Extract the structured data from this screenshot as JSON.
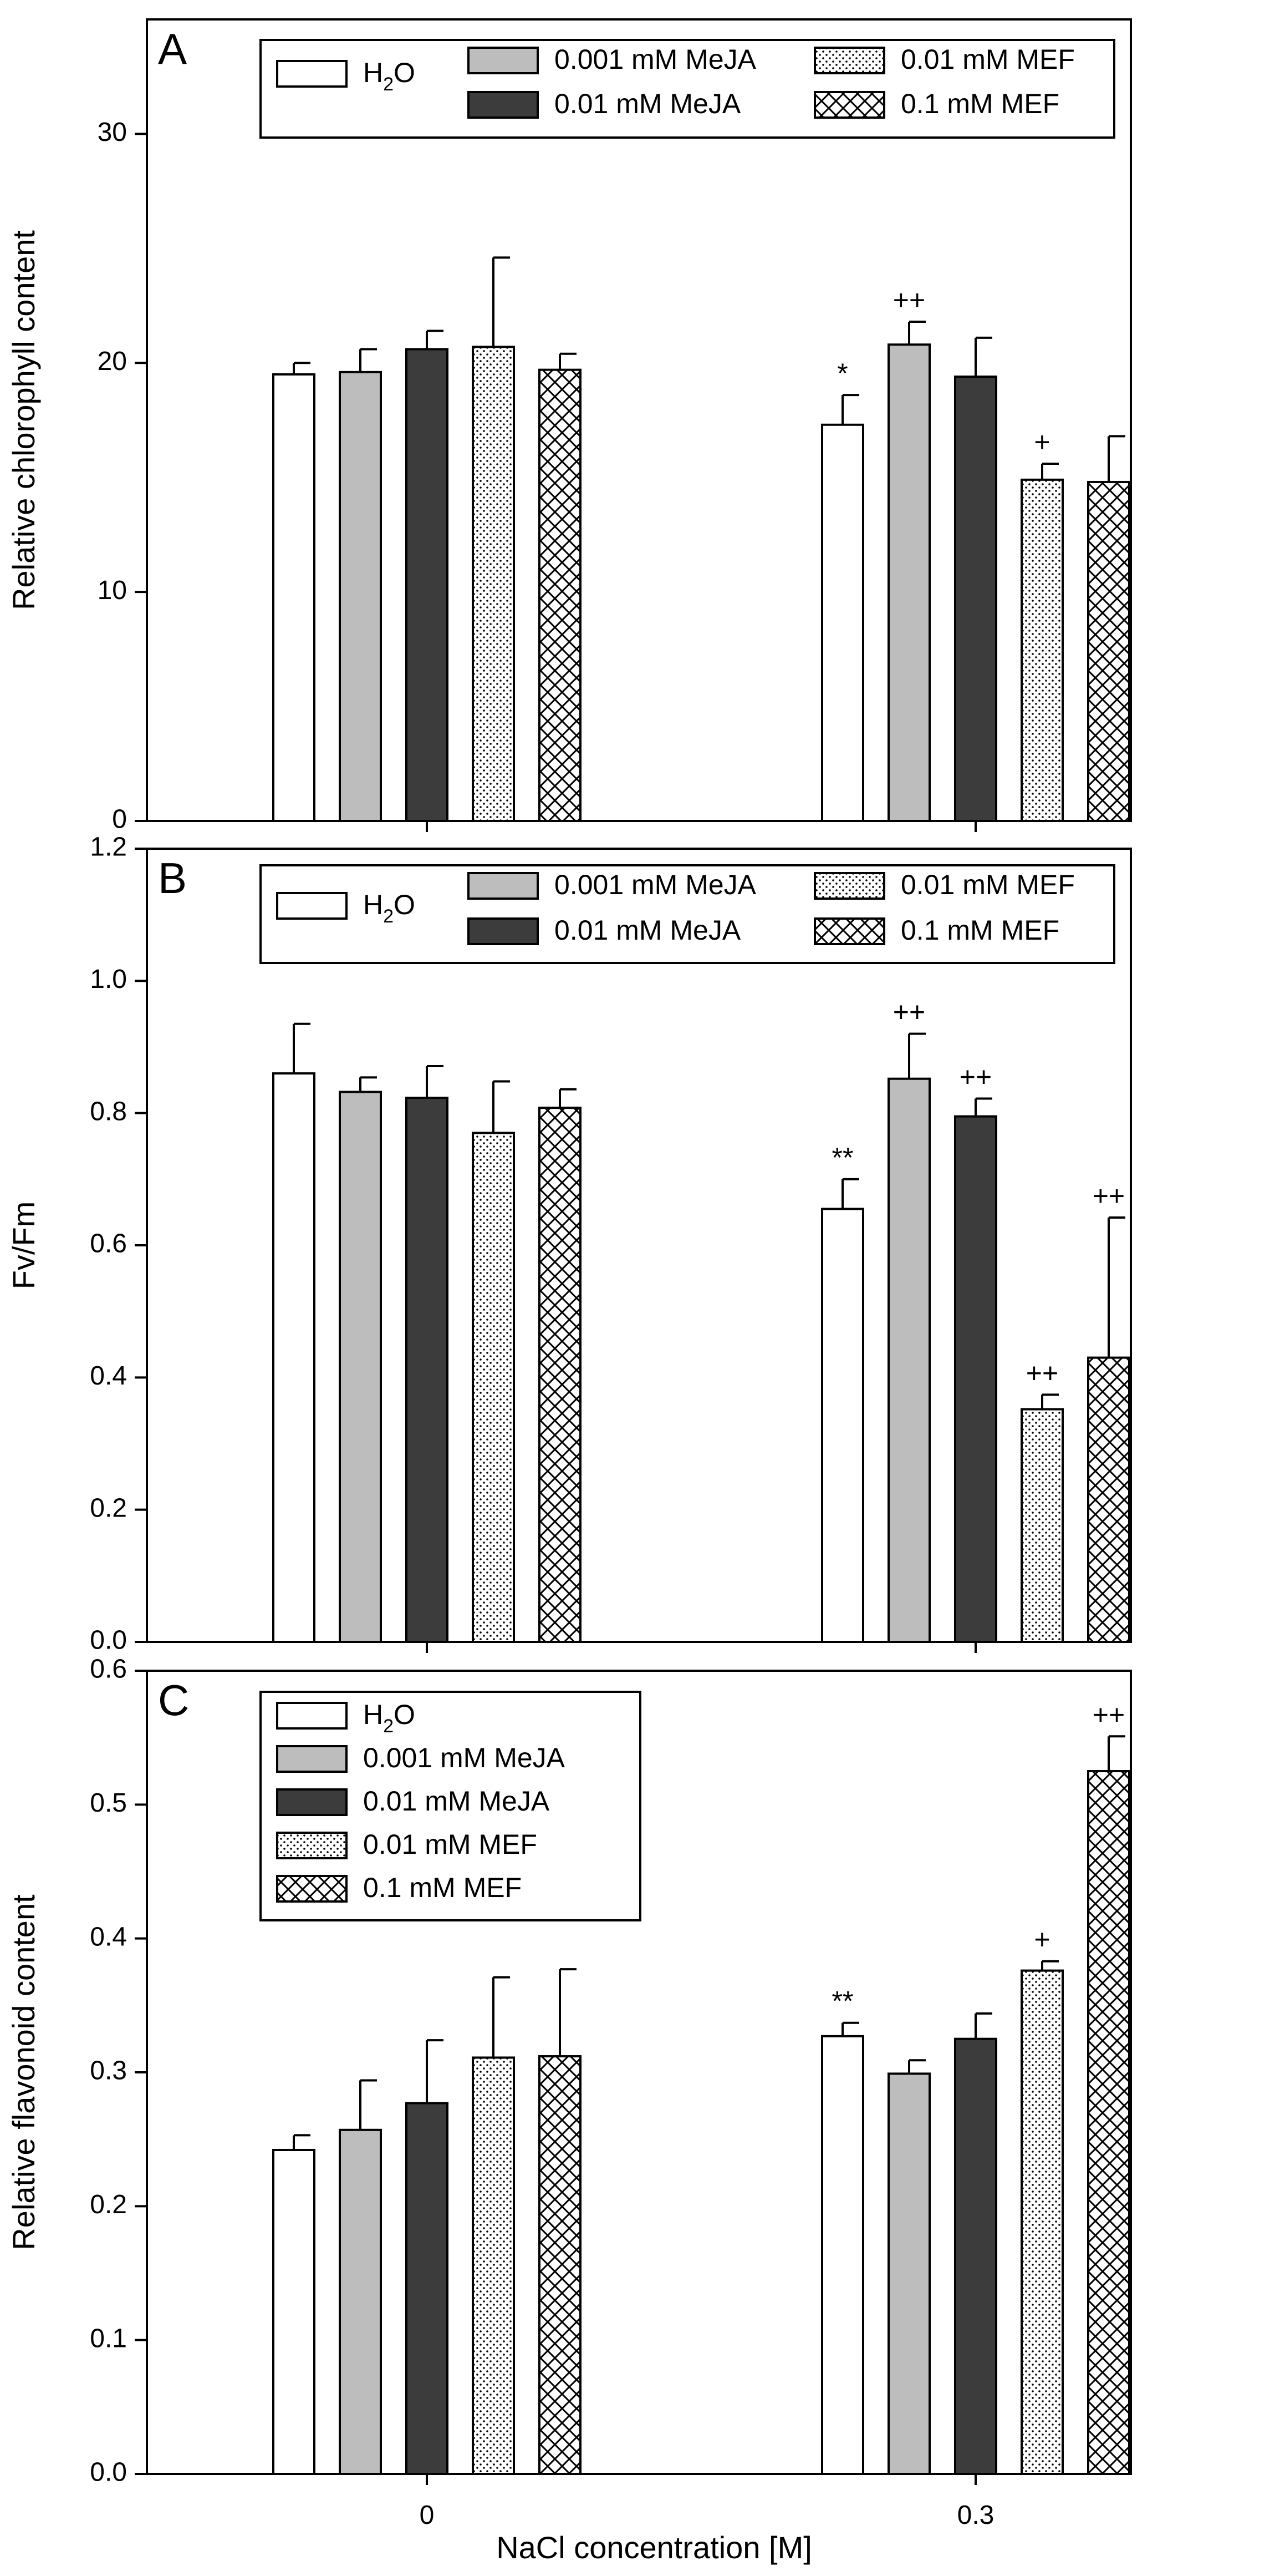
{
  "chart_data": {
    "type": "bar",
    "xlabel": "NaCl concentration [M]",
    "categories": [
      "0",
      "0.3"
    ],
    "series_names": [
      "H2O",
      "0.001 mM MeJA",
      "0.01 mM MeJA",
      "0.01 mM MEF",
      "0.1 mM MEF"
    ],
    "series_styles": [
      {
        "name": "H2O",
        "fill": "#ffffff",
        "pattern": "none"
      },
      {
        "name": "0.001 mM MeJA",
        "fill": "#bdbdbd",
        "pattern": "none"
      },
      {
        "name": "0.01 mM MeJA",
        "fill": "#3c3c3c",
        "pattern": "none"
      },
      {
        "name": "0.01 mM MEF",
        "fill": "#ffffff",
        "pattern": "dots"
      },
      {
        "name": "0.1 mM MEF",
        "fill": "#ffffff",
        "pattern": "crosshatch"
      }
    ],
    "panels": [
      {
        "label": "A",
        "ylabel": "Relative chlorophyll content",
        "ylim": [
          0,
          35
        ],
        "yticks": [
          "0",
          "10",
          "20",
          "30"
        ],
        "ytick_values": [
          0,
          10,
          20,
          30
        ],
        "legend_layout": "grid",
        "series": [
          {
            "name": "H2O",
            "values": [
              19.5,
              17.3
            ],
            "errors": [
              0.5,
              1.3
            ],
            "sig": [
              "",
              "*"
            ]
          },
          {
            "name": "0.001 mM MeJA",
            "values": [
              19.6,
              20.8
            ],
            "errors": [
              1.0,
              1.0
            ],
            "sig": [
              "",
              "++"
            ]
          },
          {
            "name": "0.01 mM MeJA",
            "values": [
              20.6,
              19.4
            ],
            "errors": [
              0.8,
              1.7
            ],
            "sig": [
              "",
              ""
            ]
          },
          {
            "name": "0.01 mM MEF",
            "values": [
              20.7,
              14.9
            ],
            "errors": [
              3.9,
              0.7
            ],
            "sig": [
              "",
              "+"
            ]
          },
          {
            "name": "0.1 mM MEF",
            "values": [
              19.7,
              14.8
            ],
            "errors": [
              0.7,
              2.0
            ],
            "sig": [
              "",
              ""
            ]
          }
        ]
      },
      {
        "label": "B",
        "ylabel": "Fv/Fm",
        "ylim": [
          0,
          1.2
        ],
        "yticks": [
          "0.0",
          "0.2",
          "0.4",
          "0.6",
          "0.8",
          "1.0",
          "1.2"
        ],
        "ytick_values": [
          0,
          0.2,
          0.4,
          0.6,
          0.8,
          1.0,
          1.2
        ],
        "legend_layout": "grid",
        "series": [
          {
            "name": "H2O",
            "values": [
              0.86,
              0.655
            ],
            "errors": [
              0.075,
              0.045
            ],
            "sig": [
              "",
              "**"
            ]
          },
          {
            "name": "0.001 mM MeJA",
            "values": [
              0.832,
              0.852
            ],
            "errors": [
              0.022,
              0.068
            ],
            "sig": [
              "",
              "++"
            ]
          },
          {
            "name": "0.01 mM MeJA",
            "values": [
              0.823,
              0.795
            ],
            "errors": [
              0.048,
              0.027
            ],
            "sig": [
              "",
              "++"
            ]
          },
          {
            "name": "0.01 mM MEF",
            "values": [
              0.77,
              0.352
            ],
            "errors": [
              0.078,
              0.022
            ],
            "sig": [
              "",
              "++"
            ]
          },
          {
            "name": "0.1 mM MEF",
            "values": [
              0.808,
              0.43
            ],
            "errors": [
              0.028,
              0.212
            ],
            "sig": [
              "",
              "++"
            ]
          }
        ]
      },
      {
        "label": "C",
        "ylabel": "Relative flavonoid content",
        "ylim": [
          0,
          0.6
        ],
        "yticks": [
          "0.0",
          "0.1",
          "0.2",
          "0.3",
          "0.4",
          "0.5",
          "0.6"
        ],
        "ytick_values": [
          0,
          0.1,
          0.2,
          0.3,
          0.4,
          0.5,
          0.6
        ],
        "legend_layout": "column",
        "series": [
          {
            "name": "H2O",
            "values": [
              0.242,
              0.327
            ],
            "errors": [
              0.011,
              0.01
            ],
            "sig": [
              "",
              "**"
            ]
          },
          {
            "name": "0.001 mM MeJA",
            "values": [
              0.257,
              0.299
            ],
            "errors": [
              0.037,
              0.01
            ],
            "sig": [
              "",
              ""
            ]
          },
          {
            "name": "0.01 mM MeJA",
            "values": [
              0.277,
              0.325
            ],
            "errors": [
              0.047,
              0.019
            ],
            "sig": [
              "",
              ""
            ]
          },
          {
            "name": "0.01 mM MEF",
            "values": [
              0.311,
              0.376
            ],
            "errors": [
              0.06,
              0.007
            ],
            "sig": [
              "",
              "+"
            ]
          },
          {
            "name": "0.1 mM MEF",
            "values": [
              0.312,
              0.525
            ],
            "errors": [
              0.065,
              0.026
            ],
            "sig": [
              "",
              "++"
            ]
          }
        ]
      }
    ]
  }
}
